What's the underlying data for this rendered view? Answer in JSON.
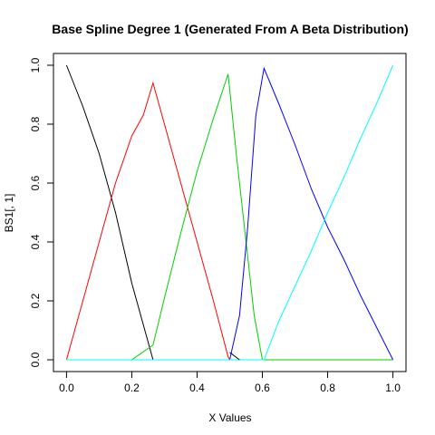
{
  "chart_data": {
    "type": "line",
    "title": "Base Spline Degree 1 (Generated From A Beta Distribution)",
    "xlabel": "X Values",
    "ylabel": "BS1[, 1]",
    "xlim": [
      -0.04,
      1.04
    ],
    "ylim": [
      -0.04,
      1.04
    ],
    "grid": false,
    "legend": "none",
    "xticks": [
      0.0,
      0.2,
      0.4,
      0.6,
      0.8,
      1.0
    ],
    "yticks": [
      0.0,
      0.2,
      0.4,
      0.6,
      0.8,
      1.0
    ],
    "xtick_labels": [
      "0.0",
      "0.2",
      "0.4",
      "0.6",
      "0.8",
      "1.0"
    ],
    "ytick_labels": [
      "0.0",
      "0.2",
      "0.4",
      "0.6",
      "0.8",
      "1.0"
    ],
    "series": [
      {
        "color": "#000000",
        "points": [
          [
            0.0,
            1.0
          ],
          [
            0.05,
            0.86
          ],
          [
            0.1,
            0.7
          ],
          [
            0.15,
            0.5
          ],
          [
            0.2,
            0.26
          ],
          [
            0.23,
            0.14
          ],
          [
            0.265,
            0.0
          ]
        ]
      },
      {
        "color": "#ff0000",
        "points": [
          [
            0.0,
            0.0
          ],
          [
            0.05,
            0.2
          ],
          [
            0.1,
            0.4
          ],
          [
            0.15,
            0.6
          ],
          [
            0.2,
            0.76
          ],
          [
            0.235,
            0.83
          ],
          [
            0.265,
            0.94
          ],
          [
            0.3,
            0.8
          ],
          [
            0.35,
            0.6
          ],
          [
            0.4,
            0.4
          ],
          [
            0.45,
            0.2
          ],
          [
            0.495,
            0.01
          ],
          [
            0.5,
            0.0
          ]
        ]
      },
      {
        "color": "#00cd00",
        "points": [
          [
            0.0,
            0.0
          ],
          [
            0.2,
            0.0
          ],
          [
            0.265,
            0.05
          ],
          [
            0.3,
            0.21
          ],
          [
            0.35,
            0.43
          ],
          [
            0.4,
            0.64
          ],
          [
            0.45,
            0.82
          ],
          [
            0.495,
            0.97
          ],
          [
            0.52,
            0.7
          ],
          [
            0.55,
            0.4
          ],
          [
            0.575,
            0.15
          ],
          [
            0.6,
            0.0
          ],
          [
            0.605,
            0.0
          ],
          [
            1.0,
            0.0
          ]
        ]
      },
      {
        "color": "#0000ff",
        "points": [
          [
            0.5,
            0.0
          ],
          [
            0.53,
            0.15
          ],
          [
            0.555,
            0.45
          ],
          [
            0.58,
            0.83
          ],
          [
            0.605,
            0.99
          ],
          [
            0.65,
            0.87
          ],
          [
            0.7,
            0.73
          ],
          [
            0.75,
            0.58
          ],
          [
            0.8,
            0.45
          ],
          [
            0.85,
            0.34
          ],
          [
            0.9,
            0.22
          ],
          [
            0.95,
            0.11
          ],
          [
            1.0,
            0.0
          ]
        ]
      },
      {
        "color": "#00ffff",
        "points": [
          [
            0.0,
            0.0
          ],
          [
            0.605,
            0.0
          ],
          [
            0.65,
            0.13
          ],
          [
            0.7,
            0.25
          ],
          [
            0.75,
            0.37
          ],
          [
            0.8,
            0.5
          ],
          [
            0.85,
            0.62
          ],
          [
            0.9,
            0.75
          ],
          [
            0.95,
            0.87
          ],
          [
            1.0,
            1.0
          ]
        ]
      },
      {
        "color": "#000000",
        "points": [
          [
            0.5,
            0.025
          ],
          [
            0.53,
            0.0
          ]
        ]
      }
    ]
  }
}
